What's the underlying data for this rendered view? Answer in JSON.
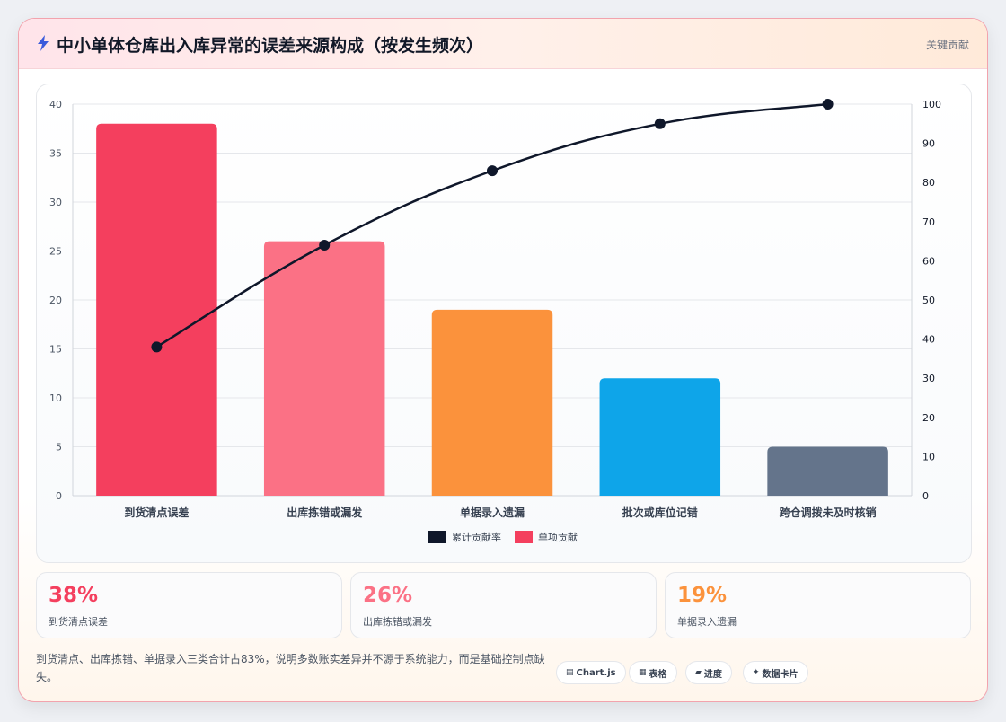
{
  "header": {
    "title": "中小单体仓库出入库异常的误差来源构成（按发生频次）",
    "tag": "关键贡献"
  },
  "chart_data": {
    "type": "bar",
    "categories": [
      "到货清点误差",
      "出库拣错或漏发",
      "单据录入遗漏",
      "批次或库位记错",
      "跨仓调拨未及时核销"
    ],
    "series": [
      {
        "name": "单项贡献",
        "type": "bar",
        "values": [
          38,
          26,
          19,
          12,
          5
        ],
        "colors": [
          "#f43f5e",
          "#fb7185",
          "#fb923c",
          "#0ea5e9",
          "#64748b"
        ]
      },
      {
        "name": "累计贡献率",
        "type": "line",
        "axis": "right",
        "values": [
          38,
          64,
          83,
          95,
          100
        ],
        "color": "#0f172a"
      }
    ],
    "y_left": {
      "min": 0,
      "max": 40,
      "ticks": [
        "0",
        "5",
        "10",
        "15",
        "20",
        "25",
        "30",
        "35",
        "40"
      ]
    },
    "y_right": {
      "min": 0,
      "max": 100,
      "ticks": [
        "0",
        "10",
        "20",
        "30",
        "40",
        "50",
        "60",
        "70",
        "80",
        "90",
        "100"
      ]
    },
    "legend": {
      "placement": "bottom",
      "items": [
        "累计贡献率",
        "单项贡献"
      ]
    },
    "grid": true
  },
  "stats": [
    {
      "value": "38%",
      "label": "到货清点误差",
      "color": "#f43f5e"
    },
    {
      "value": "26%",
      "label": "出库拣错或漏发",
      "color": "#fb7185"
    },
    {
      "value": "19%",
      "label": "单据录入遗漏",
      "color": "#fb923c"
    }
  ],
  "note": "到货清点、出库拣错、单据录入三类合计占83%，说明多数账实差异并不源于系统能力，而是基础控制点缺失。",
  "chips": [
    {
      "icon": "▤",
      "label": "Chart.js"
    },
    {
      "icon": "▦",
      "label": "表格"
    },
    {
      "icon": "▰",
      "label": "进度"
    },
    {
      "icon": "✦",
      "label": "数据卡片"
    }
  ]
}
